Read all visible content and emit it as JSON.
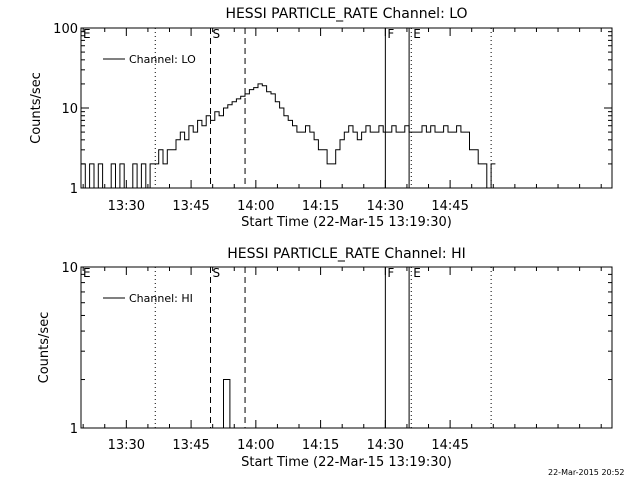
{
  "chart_data": [
    {
      "type": "line",
      "title": "HESSI PARTICLE_RATE Channel: LO",
      "xlabel": "Start Time (22-Mar-15 13:19:30)",
      "ylabel": "Counts/sec",
      "yscale": "log",
      "ylim": [
        1,
        100
      ],
      "yticks": [
        1,
        10,
        100
      ],
      "ytick_labels": [
        "1",
        "10",
        "100"
      ],
      "xlim_min": [
        0,
        123
      ],
      "xticks_min": [
        10.5,
        25.5,
        40.5,
        55.5,
        70.5,
        85.5
      ],
      "xtick_labels": [
        "13:30",
        "13:45",
        "14:00",
        "14:15",
        "14:30",
        "14:45"
      ],
      "legend": {
        "position": "top-left",
        "entries": [
          "Channel: LO"
        ]
      },
      "markers": [
        {
          "label": "E",
          "style": "dotted",
          "x_min": 0
        },
        {
          "label": "",
          "style": "dotted",
          "x_min": 17.2
        },
        {
          "label": "S",
          "style": "dashed",
          "x_min": 30
        },
        {
          "label": "",
          "style": "dashed",
          "x_min": 38
        },
        {
          "label": "F",
          "style": "solid",
          "x_min": 70.5
        },
        {
          "label": "",
          "style": "solid",
          "x_min": 76
        },
        {
          "label": "E",
          "style": "dotted",
          "x_min": 76.5
        },
        {
          "label": "",
          "style": "dotted",
          "x_min": 95
        }
      ],
      "series": [
        {
          "name": "Channel: LO",
          "x_min": [
            0,
            1,
            2,
            3,
            4,
            5,
            6,
            7,
            8,
            9,
            10,
            11,
            12,
            13,
            14,
            15,
            16,
            17,
            18,
            19,
            20,
            21,
            22,
            23,
            24,
            25,
            26,
            27,
            28,
            29,
            30,
            31,
            32,
            33,
            34,
            35,
            36,
            37,
            38,
            39,
            40,
            41,
            42,
            43,
            44,
            45,
            46,
            47,
            48,
            49,
            50,
            51,
            52,
            53,
            54,
            55,
            56,
            57,
            58,
            59,
            60,
            61,
            62,
            63,
            64,
            65,
            66,
            67,
            68,
            69,
            70,
            71,
            72,
            73,
            74,
            75,
            76,
            77,
            78,
            79,
            80,
            81,
            82,
            83,
            84,
            85,
            86,
            87,
            88,
            89,
            90,
            91,
            92,
            93,
            94,
            95
          ],
          "values": [
            2,
            1,
            2,
            1,
            2,
            1,
            1,
            2,
            1,
            2,
            1,
            1,
            2,
            1,
            2,
            1,
            2,
            2,
            3,
            2,
            3,
            3,
            4,
            5,
            4,
            6,
            5,
            7,
            6,
            8,
            7,
            9,
            8,
            10,
            11,
            12,
            13,
            14,
            15,
            17,
            18,
            20,
            19,
            16,
            15,
            12,
            10,
            8,
            7,
            6,
            5,
            5,
            6,
            5,
            4,
            3,
            3,
            2,
            2,
            3,
            4,
            5,
            6,
            5,
            4,
            5,
            6,
            5,
            5,
            6,
            5,
            5,
            6,
            5,
            5,
            6,
            5,
            5,
            5,
            6,
            5,
            6,
            5,
            5,
            6,
            5,
            5,
            6,
            5,
            5,
            3,
            3,
            2,
            2,
            1,
            2
          ],
          "note": ""
        }
      ]
    },
    {
      "type": "line",
      "title": "HESSI PARTICLE_RATE Channel: HI",
      "xlabel": "Start Time (22-Mar-15 13:19:30)",
      "ylabel": "Counts/sec",
      "yscale": "log",
      "ylim": [
        1,
        10
      ],
      "yticks": [
        1,
        10
      ],
      "ytick_labels": [
        "1",
        "10"
      ],
      "xlim_min": [
        0,
        123
      ],
      "xticks_min": [
        10.5,
        25.5,
        40.5,
        55.5,
        70.5,
        85.5
      ],
      "xtick_labels": [
        "13:30",
        "13:45",
        "14:00",
        "14:15",
        "14:30",
        "14:45"
      ],
      "legend": {
        "position": "top-left",
        "entries": [
          "Channel: HI"
        ]
      },
      "markers": [
        {
          "label": "E",
          "style": "dotted",
          "x_min": 0
        },
        {
          "label": "",
          "style": "dotted",
          "x_min": 17.2
        },
        {
          "label": "S",
          "style": "dashed",
          "x_min": 30
        },
        {
          "label": "",
          "style": "dashed",
          "x_min": 38
        },
        {
          "label": "F",
          "style": "solid",
          "x_min": 70.5
        },
        {
          "label": "",
          "style": "solid",
          "x_min": 76
        },
        {
          "label": "E",
          "style": "dotted",
          "x_min": 76.5
        },
        {
          "label": "",
          "style": "dotted",
          "x_min": 95
        }
      ],
      "series": [
        {
          "name": "Channel: HI",
          "x_min": [
            32.5,
            33,
            33.5,
            34,
            34.5
          ],
          "values": [
            1,
            2,
            2,
            2,
            1
          ]
        }
      ]
    }
  ],
  "footer": {
    "timestamp": "22-Mar-2015 20:52"
  }
}
